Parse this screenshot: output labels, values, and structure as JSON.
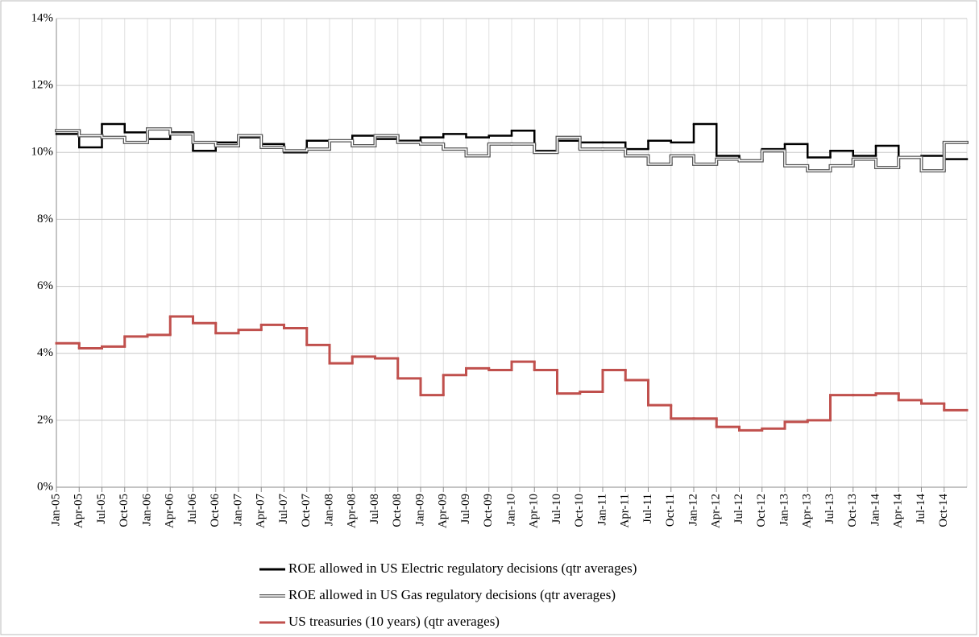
{
  "chart_data": {
    "type": "step",
    "categories": [
      "Jan-05",
      "Apr-05",
      "Jul-05",
      "Oct-05",
      "Jan-06",
      "Apr-06",
      "Jul-06",
      "Oct-06",
      "Jan-07",
      "Apr-07",
      "Jul-07",
      "Oct-07",
      "Jan-08",
      "Apr-08",
      "Jul-08",
      "Oct-08",
      "Jan-09",
      "Apr-09",
      "Jul-09",
      "Oct-09",
      "Jan-10",
      "Apr-10",
      "Jul-10",
      "Oct-10",
      "Jan-11",
      "Apr-11",
      "Jul-11",
      "Oct-11",
      "Jan-12",
      "Apr-12",
      "Jul-12",
      "Oct-12",
      "Jan-13",
      "Apr-13",
      "Jul-13",
      "Oct-13",
      "Jan-14",
      "Apr-14",
      "Jul-14",
      "Oct-14"
    ],
    "series": [
      {
        "name": "ROE allowed in US Electric regulatory decisions (qtr averages)",
        "color": "#000000",
        "style": "solid",
        "values": [
          10.55,
          10.15,
          10.85,
          10.6,
          10.4,
          10.6,
          10.05,
          10.3,
          10.45,
          10.25,
          10.0,
          10.35,
          10.35,
          10.5,
          10.4,
          10.35,
          10.45,
          10.55,
          10.45,
          10.5,
          10.65,
          10.05,
          10.35,
          10.3,
          10.3,
          10.1,
          10.35,
          10.3,
          10.85,
          9.9,
          9.75,
          10.1,
          10.25,
          9.85,
          10.05,
          9.9,
          10.2,
          9.85,
          9.9,
          9.8
        ]
      },
      {
        "name": "ROE allowed in US Gas regulatory decisions (qtr averages)",
        "color": "#555555",
        "style": "double",
        "values": [
          10.65,
          10.5,
          10.45,
          10.3,
          10.7,
          10.55,
          10.3,
          10.2,
          10.5,
          10.15,
          10.05,
          10.1,
          10.35,
          10.2,
          10.5,
          10.3,
          10.25,
          10.1,
          9.9,
          10.25,
          10.25,
          10.0,
          10.45,
          10.1,
          10.1,
          9.9,
          9.65,
          9.9,
          9.65,
          9.8,
          9.75,
          10.05,
          9.6,
          9.45,
          9.6,
          9.8,
          9.55,
          9.85,
          9.45,
          10.3
        ]
      },
      {
        "name": "US treasuries (10 years) (qtr averages)",
        "color": "#c0504d",
        "style": "solid",
        "values": [
          4.3,
          4.15,
          4.2,
          4.5,
          4.55,
          5.1,
          4.9,
          4.6,
          4.7,
          4.85,
          4.75,
          4.25,
          3.7,
          3.9,
          3.85,
          3.25,
          2.75,
          3.35,
          3.55,
          3.5,
          3.75,
          3.5,
          2.8,
          2.85,
          3.5,
          3.2,
          2.45,
          2.05,
          2.05,
          1.8,
          1.7,
          1.75,
          1.95,
          2.0,
          2.75,
          2.75,
          2.8,
          2.6,
          2.5,
          2.3
        ]
      }
    ],
    "ylim": [
      0,
      14
    ],
    "yticks": [
      {
        "value": 0,
        "label": "0%"
      },
      {
        "value": 2,
        "label": "2%"
      },
      {
        "value": 4,
        "label": "4%"
      },
      {
        "value": 6,
        "label": "6%"
      },
      {
        "value": 8,
        "label": "8%"
      },
      {
        "value": 10,
        "label": "10%"
      },
      {
        "value": 12,
        "label": "12%"
      },
      {
        "value": 14,
        "label": "14%"
      }
    ],
    "grid": true,
    "legend": "bottom"
  }
}
